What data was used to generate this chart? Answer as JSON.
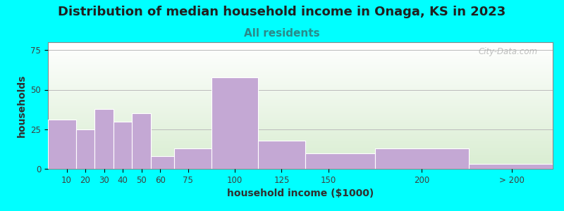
{
  "title": "Distribution of median household income in Onaga, KS in 2023",
  "subtitle": "All residents",
  "xlabel": "household income ($1000)",
  "ylabel": "households",
  "background_outer": "#00FFFF",
  "bar_color": "#C4A8D4",
  "bar_edge_color": "#FFFFFF",
  "categories": [
    "10",
    "20",
    "30",
    "40",
    "50",
    "60",
    "75",
    "100",
    "125",
    "150",
    "200",
    "> 200"
  ],
  "bin_edges": [
    0,
    15,
    25,
    35,
    45,
    55,
    67.5,
    87.5,
    112.5,
    137.5,
    175,
    225,
    270
  ],
  "tick_positions": [
    10,
    20,
    30,
    40,
    50,
    60,
    75,
    100,
    125,
    150,
    200
  ],
  "values": [
    31,
    25,
    38,
    30,
    35,
    8,
    13,
    58,
    18,
    10,
    13,
    3
  ],
  "ylim": [
    0,
    80
  ],
  "yticks": [
    0,
    25,
    50,
    75
  ],
  "title_fontsize": 13,
  "subtitle_fontsize": 11,
  "axis_label_fontsize": 10,
  "tick_fontsize": 8.5,
  "watermark_text": "City-Data.com",
  "plot_bg_top": "#FFFFFF",
  "plot_bg_bottom": "#DFF0D8",
  "xlim_left": 0,
  "xlim_right": 270
}
